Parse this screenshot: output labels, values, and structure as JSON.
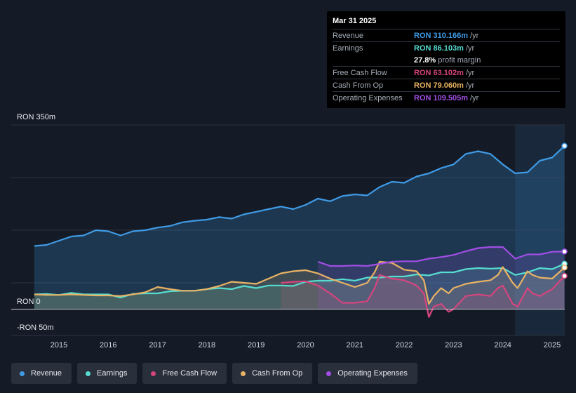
{
  "chart_data": {
    "type": "area",
    "y_range": [
      -50,
      350
    ],
    "x_range": [
      2014.0,
      2025.25
    ],
    "y_tick_labels": [
      "RON 350m",
      "RON 0",
      "-RON 50m"
    ],
    "x_tick_labels": [
      "2015",
      "2016",
      "2017",
      "2018",
      "2019",
      "2020",
      "2021",
      "2022",
      "2023",
      "2024",
      "2025"
    ],
    "x_ticks": [
      2015,
      2016,
      2017,
      2018,
      2019,
      2020,
      2021,
      2022,
      2023,
      2024,
      2025
    ],
    "highlight_start": 2024.25,
    "series": [
      {
        "name": "Revenue",
        "color": "#3f9be6",
        "x": [
          2014.5,
          2014.75,
          2015.0,
          2015.25,
          2015.5,
          2015.75,
          2016.0,
          2016.25,
          2016.5,
          2016.75,
          2017.0,
          2017.25,
          2017.5,
          2017.75,
          2018.0,
          2018.25,
          2018.5,
          2018.75,
          2019.0,
          2019.25,
          2019.5,
          2019.75,
          2020.0,
          2020.25,
          2020.5,
          2020.75,
          2021.0,
          2021.25,
          2021.5,
          2021.75,
          2022.0,
          2022.25,
          2022.5,
          2022.75,
          2023.0,
          2023.25,
          2023.5,
          2023.75,
          2024.0,
          2024.25,
          2024.5,
          2024.75,
          2025.0,
          2025.25
        ],
        "values": [
          120,
          122,
          130,
          138,
          140,
          150,
          148,
          140,
          148,
          150,
          155,
          158,
          165,
          168,
          170,
          175,
          172,
          180,
          185,
          190,
          195,
          190,
          198,
          210,
          205,
          215,
          218,
          216,
          232,
          242,
          240,
          252,
          258,
          268,
          275,
          295,
          300,
          295,
          275,
          258,
          260,
          282,
          288,
          310.166
        ]
      },
      {
        "name": "Earnings",
        "color": "#56ddd0",
        "x": [
          2014.5,
          2014.75,
          2015.0,
          2015.25,
          2015.5,
          2015.75,
          2016.0,
          2016.25,
          2016.5,
          2016.75,
          2017.0,
          2017.25,
          2017.5,
          2017.75,
          2018.0,
          2018.25,
          2018.5,
          2018.75,
          2019.0,
          2019.25,
          2019.5,
          2019.75,
          2020.0,
          2020.25,
          2020.5,
          2020.75,
          2021.0,
          2021.25,
          2021.5,
          2021.75,
          2022.0,
          2022.25,
          2022.5,
          2022.75,
          2023.0,
          2023.25,
          2023.5,
          2023.75,
          2024.0,
          2024.25,
          2024.5,
          2024.75,
          2025.0,
          2025.25
        ],
        "values": [
          28,
          29,
          27,
          31,
          28,
          28,
          28,
          22,
          29,
          30,
          30,
          34,
          35,
          35,
          38,
          40,
          38,
          44,
          40,
          45,
          45,
          44,
          52,
          54,
          54,
          57,
          54,
          60,
          60,
          62,
          62,
          66,
          64,
          70,
          70,
          76,
          78,
          77,
          78,
          65,
          70,
          78,
          76,
          86.103
        ]
      },
      {
        "name": "Free Cash Flow",
        "color": "#d6457e",
        "x": [
          2019.5,
          2019.75,
          2020.0,
          2020.25,
          2020.5,
          2020.75,
          2021.0,
          2021.25,
          2021.4,
          2021.5,
          2021.75,
          2022.0,
          2022.25,
          2022.4,
          2022.5,
          2022.6,
          2022.75,
          2022.9,
          2023.0,
          2023.25,
          2023.5,
          2023.75,
          2023.9,
          2024.0,
          2024.2,
          2024.3,
          2024.5,
          2024.6,
          2024.75,
          2025.0,
          2025.25
        ],
        "values": [
          50,
          52,
          53,
          45,
          30,
          12,
          12,
          15,
          40,
          65,
          58,
          55,
          45,
          30,
          -15,
          5,
          10,
          -5,
          0,
          25,
          28,
          25,
          40,
          45,
          10,
          5,
          40,
          30,
          25,
          38,
          63.102
        ]
      },
      {
        "name": "Cash From Op",
        "color": "#e8b364",
        "x": [
          2014.5,
          2014.75,
          2015.0,
          2015.25,
          2015.5,
          2015.75,
          2016.0,
          2016.25,
          2016.5,
          2016.75,
          2017.0,
          2017.25,
          2017.5,
          2017.75,
          2018.0,
          2018.25,
          2018.5,
          2018.75,
          2019.0,
          2019.25,
          2019.5,
          2019.75,
          2020.0,
          2020.25,
          2020.5,
          2020.75,
          2021.0,
          2021.25,
          2021.4,
          2021.5,
          2021.75,
          2022.0,
          2022.25,
          2022.4,
          2022.5,
          2022.6,
          2022.75,
          2022.9,
          2023.0,
          2023.25,
          2023.5,
          2023.75,
          2023.9,
          2024.0,
          2024.2,
          2024.3,
          2024.5,
          2024.6,
          2024.75,
          2025.0,
          2025.25
        ],
        "values": [
          28,
          27,
          27,
          28,
          27,
          26,
          26,
          25,
          28,
          32,
          42,
          38,
          35,
          35,
          38,
          44,
          52,
          50,
          48,
          58,
          68,
          72,
          74,
          68,
          58,
          50,
          42,
          50,
          70,
          90,
          88,
          75,
          72,
          55,
          10,
          25,
          40,
          30,
          40,
          48,
          52,
          55,
          65,
          80,
          50,
          40,
          72,
          65,
          60,
          58,
          79.06
        ]
      },
      {
        "name": "Operating Expenses",
        "color": "#a24ee6",
        "x": [
          2020.25,
          2020.5,
          2020.75,
          2021.0,
          2021.25,
          2021.5,
          2021.75,
          2022.0,
          2022.25,
          2022.5,
          2022.75,
          2023.0,
          2023.25,
          2023.5,
          2023.75,
          2024.0,
          2024.25,
          2024.5,
          2024.75,
          2025.0,
          2025.25
        ],
        "values": [
          90,
          82,
          82,
          83,
          82,
          86,
          90,
          91,
          91,
          96,
          99,
          103,
          110,
          116,
          118,
          118,
          96,
          104,
          104,
          109,
          109.505
        ]
      }
    ]
  },
  "tooltip": {
    "date": "Mar 31 2025",
    "rows": [
      {
        "label": "Revenue",
        "value": "RON 310.166m",
        "unit": "/yr",
        "color": "#3f9be6"
      },
      {
        "label": "Earnings",
        "value": "RON 86.103m",
        "unit": "/yr",
        "color": "#56ddd0"
      },
      {
        "label": "",
        "value": "27.8%",
        "unit": "profit margin",
        "color": "#ffffff"
      },
      {
        "label": "Free Cash Flow",
        "value": "RON 63.102m",
        "unit": "/yr",
        "color": "#d6457e"
      },
      {
        "label": "Cash From Op",
        "value": "RON 79.060m",
        "unit": "/yr",
        "color": "#e8b364"
      },
      {
        "label": "Operating Expenses",
        "value": "RON 109.505m",
        "unit": "/yr",
        "color": "#a24ee6"
      }
    ]
  },
  "legend": [
    {
      "label": "Revenue",
      "color": "#3f9be6"
    },
    {
      "label": "Earnings",
      "color": "#56ddd0"
    },
    {
      "label": "Free Cash Flow",
      "color": "#d6457e"
    },
    {
      "label": "Cash From Op",
      "color": "#e8b364"
    },
    {
      "label": "Operating Expenses",
      "color": "#a24ee6"
    }
  ]
}
